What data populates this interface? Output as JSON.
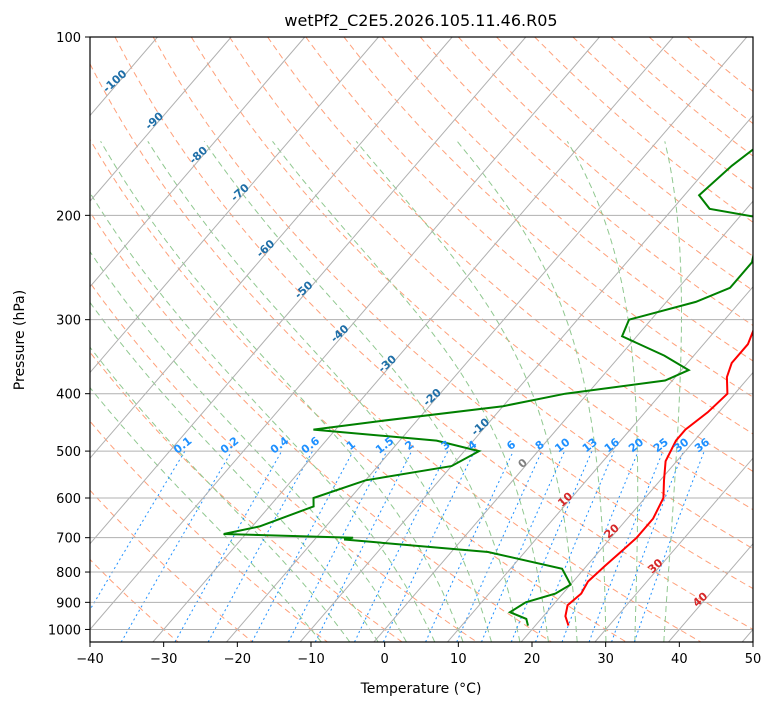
{
  "chart_data": {
    "type": "line",
    "subtype": "skew-t log-p",
    "title": "wetPf2_C2E5.2026.105.11.46.R05",
    "xlabel": "Temperature (°C)",
    "ylabel": "Pressure (hPa)",
    "xlim": [
      -40,
      50
    ],
    "ylim": [
      1050,
      100
    ],
    "y_scale": "log",
    "x_ticks": [
      "−40",
      "−30",
      "−20",
      "−10",
      "0",
      "10",
      "20",
      "30",
      "40",
      "50"
    ],
    "y_ticks": [
      "100",
      "200",
      "300",
      "400",
      "500",
      "600",
      "700",
      "800",
      "900",
      "1000"
    ],
    "grid": true,
    "colors": {
      "temperature": "#ff0000",
      "dewpoint": "#008000",
      "isotherm": "#b0b0b0",
      "dry_adiabat": "#ffa07a",
      "moist_adiabat": "#90c890",
      "mixing_ratio": "#1e90ff",
      "isotherm_label": "#1f6fa8",
      "dry_adiabat_label": "#d62728"
    },
    "isotherm_labels": [
      "-100",
      "-90",
      "-80",
      "-70",
      "-60",
      "-50",
      "-40",
      "-30",
      "-20",
      "-10",
      "0",
      "10",
      "20",
      "30",
      "40"
    ],
    "mixing_ratio_labels": [
      "0.1",
      "0.2",
      "0.4",
      "0.6",
      "1",
      "1.5",
      "2",
      "3",
      "4",
      "6",
      "8",
      "10",
      "13",
      "16",
      "20",
      "25",
      "30",
      "36"
    ],
    "series": [
      {
        "key": "temperature",
        "points": [
          [
            2,
            100
          ],
          [
            1,
            110
          ],
          [
            1.5,
            130
          ],
          [
            1,
            150
          ],
          [
            2,
            170
          ],
          [
            4,
            190
          ],
          [
            5,
            200
          ],
          [
            6,
            215
          ],
          [
            8,
            240
          ],
          [
            10,
            260
          ],
          [
            13,
            285
          ],
          [
            15,
            310
          ],
          [
            16,
            330
          ],
          [
            16,
            355
          ],
          [
            17,
            375
          ],
          [
            19,
            400
          ],
          [
            18.5,
            430
          ],
          [
            17.5,
            460
          ],
          [
            17.5,
            480
          ],
          [
            18.5,
            520
          ],
          [
            20.5,
            560
          ],
          [
            22.5,
            600
          ],
          [
            23.5,
            650
          ],
          [
            23.5,
            700
          ],
          [
            23,
            740
          ],
          [
            22.5,
            780
          ],
          [
            22,
            830
          ],
          [
            22.5,
            870
          ],
          [
            22,
            910
          ],
          [
            23,
            950
          ],
          [
            24.5,
            985
          ]
        ]
      },
      {
        "key": "dewpoint",
        "points": [
          [
            -3,
            100
          ],
          [
            -5,
            115
          ],
          [
            -4.5,
            140
          ],
          [
            -7,
            165
          ],
          [
            -8,
            185
          ],
          [
            -5,
            195
          ],
          [
            3,
            202
          ],
          [
            5,
            220
          ],
          [
            7,
            240
          ],
          [
            7,
            265
          ],
          [
            4,
            280
          ],
          [
            -3,
            300
          ],
          [
            -2,
            320
          ],
          [
            6,
            345
          ],
          [
            11,
            365
          ],
          [
            9,
            380
          ],
          [
            -3,
            400
          ],
          [
            -10,
            420
          ],
          [
            -25,
            445
          ],
          [
            -33,
            460
          ],
          [
            -15,
            480
          ],
          [
            -8,
            500
          ],
          [
            -10,
            530
          ],
          [
            -20,
            560
          ],
          [
            -25,
            600
          ],
          [
            -24,
            620
          ],
          [
            -29,
            670
          ],
          [
            -33,
            690
          ],
          [
            -15,
            700
          ],
          [
            -16,
            705
          ],
          [
            -13,
            710
          ],
          [
            5,
            740
          ],
          [
            17,
            790
          ],
          [
            20,
            840
          ],
          [
            19,
            870
          ],
          [
            16,
            900
          ],
          [
            15,
            935
          ],
          [
            18,
            960
          ],
          [
            19,
            985
          ]
        ]
      }
    ]
  }
}
